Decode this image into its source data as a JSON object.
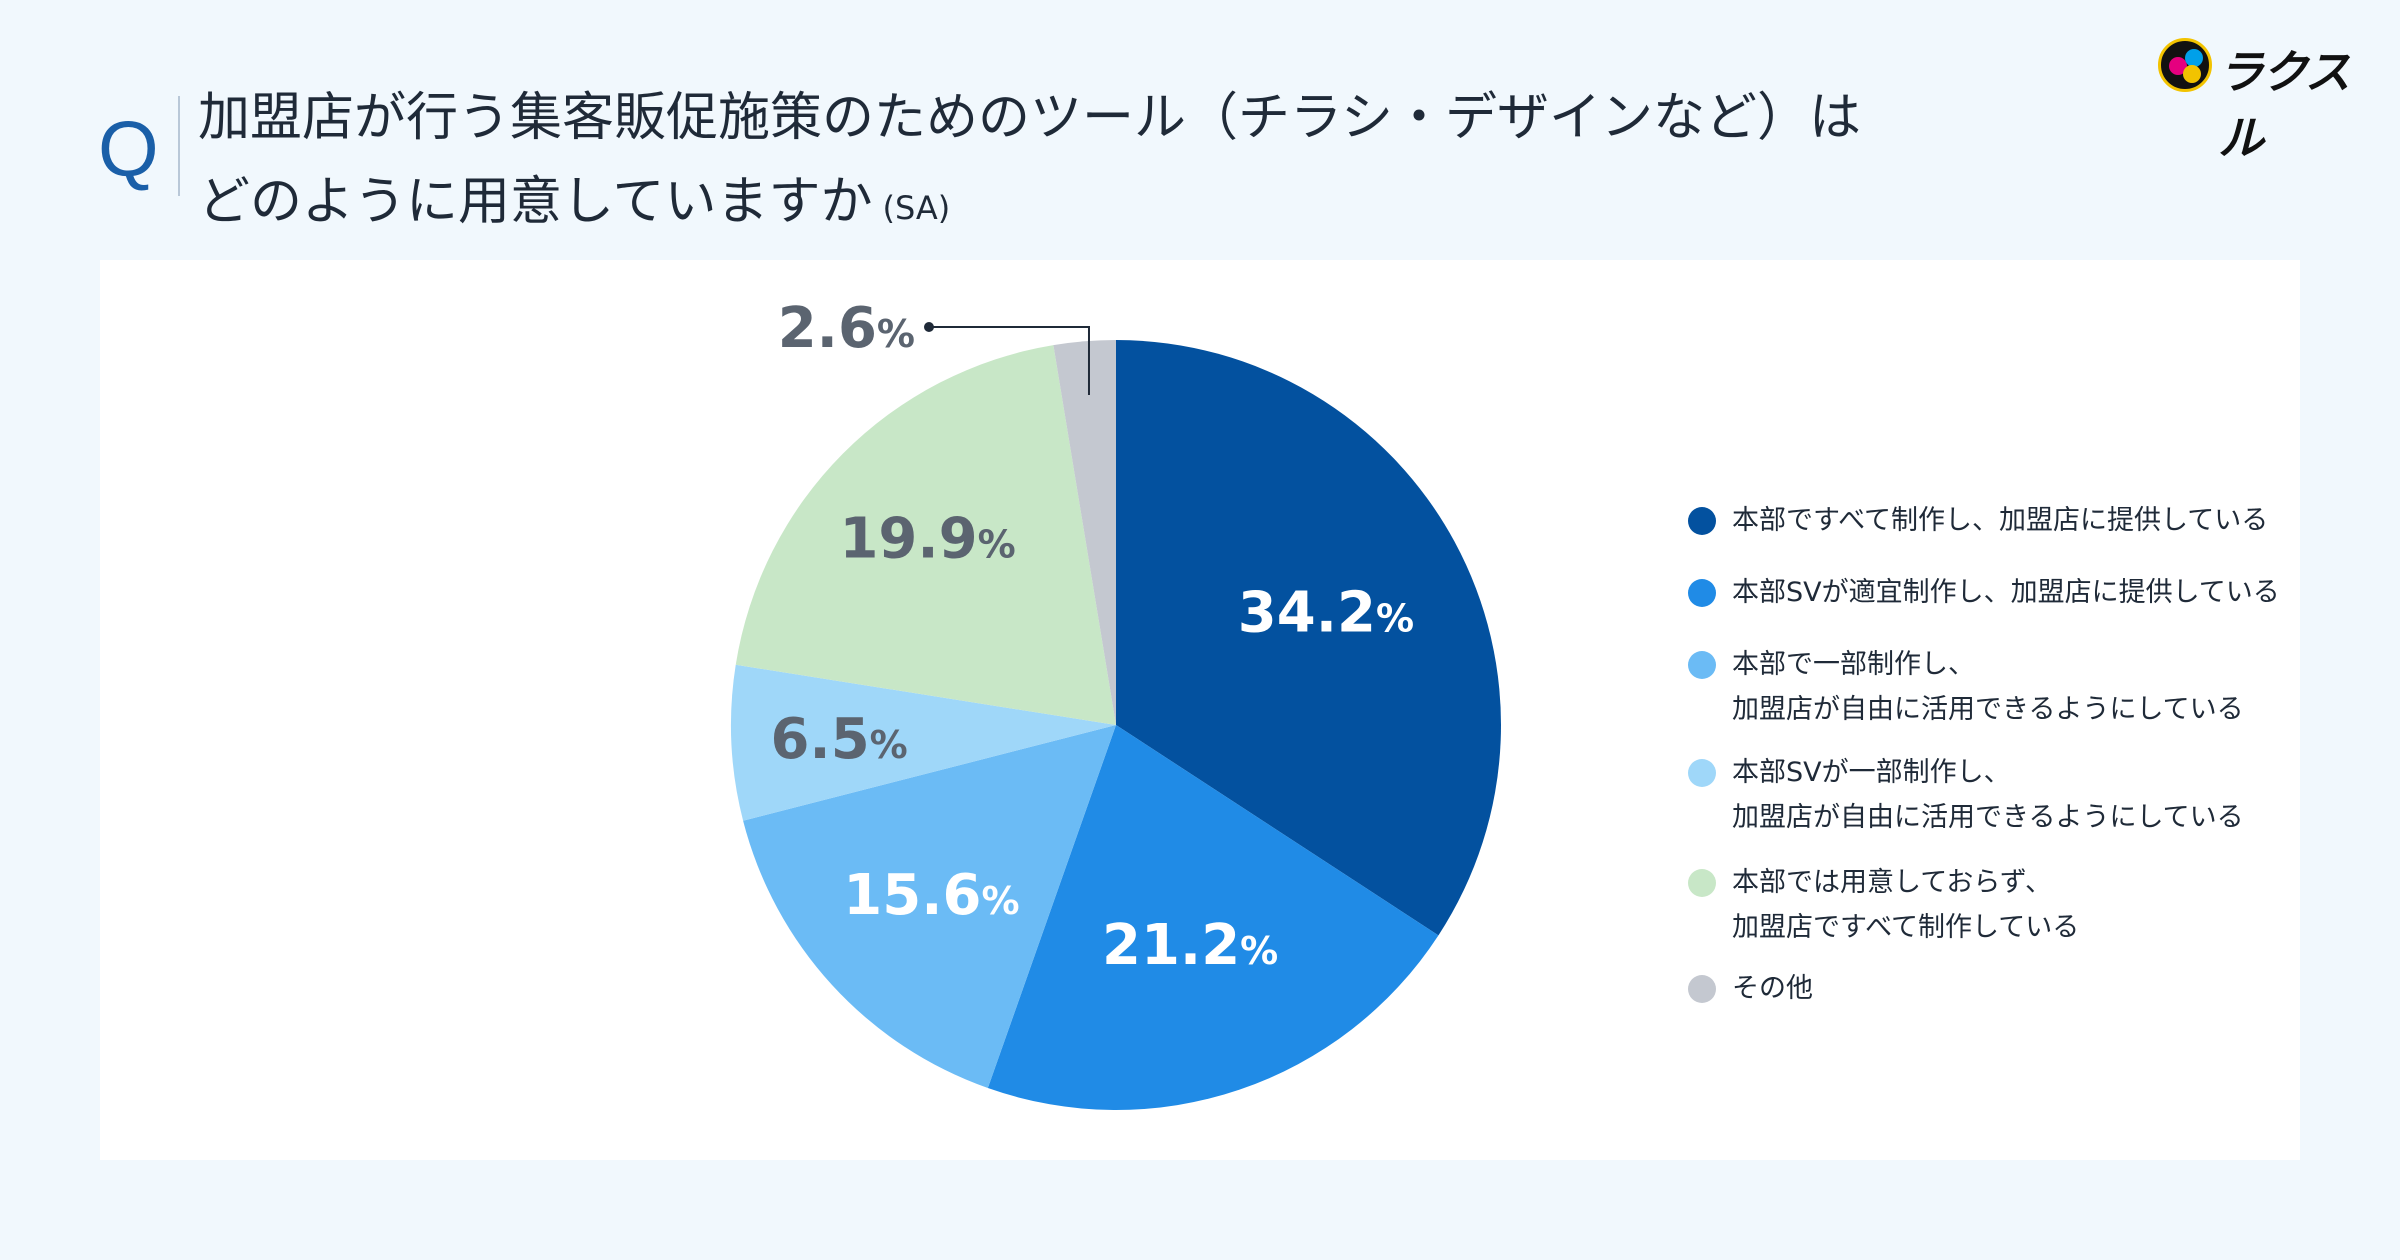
{
  "header": {
    "q_mark": "Q",
    "title_line1": "加盟店が行う集客販促施策のためのツール（チラシ・デザインなど）は",
    "title_line2": "どのように用意していますか",
    "title_suffix": "(SA)"
  },
  "logo": {
    "text": "ラクスル",
    "icon": "raksul-logo-icon"
  },
  "chart_data": {
    "type": "pie",
    "start": "12 o'clock, clockwise",
    "unit": "%",
    "slices": [
      {
        "label": "本部ですべて制作し、加盟店に提供している",
        "value": 34.2,
        "display": "34.2",
        "color": "#03519f",
        "label_color": "#ffffff"
      },
      {
        "label": "本部SVが適宜制作し、加盟店に提供している",
        "value": 21.2,
        "display": "21.2",
        "color": "#208be6",
        "label_color": "#ffffff"
      },
      {
        "label": "本部で一部制作し、\n加盟店が自由に活用できるようにしている",
        "value": 15.6,
        "display": "15.6",
        "color": "#6bbbf5",
        "label_color": "#ffffff"
      },
      {
        "label": "本部SVが一部制作し、\n加盟店が自由に活用できるようにしている",
        "value": 6.5,
        "display": "6.5",
        "color": "#9fd7f9",
        "label_color": "#5b6470"
      },
      {
        "label": "本部では用意しておらず、\n加盟店ですべて制作している",
        "value": 19.9,
        "display": "19.9",
        "color": "#c8e7c7",
        "label_color": "#5b6470"
      },
      {
        "label": "その他",
        "value": 2.6,
        "display": "2.6",
        "color": "#c4c8d0",
        "label_color": "#5b6470"
      }
    ],
    "legend_position": "right"
  }
}
